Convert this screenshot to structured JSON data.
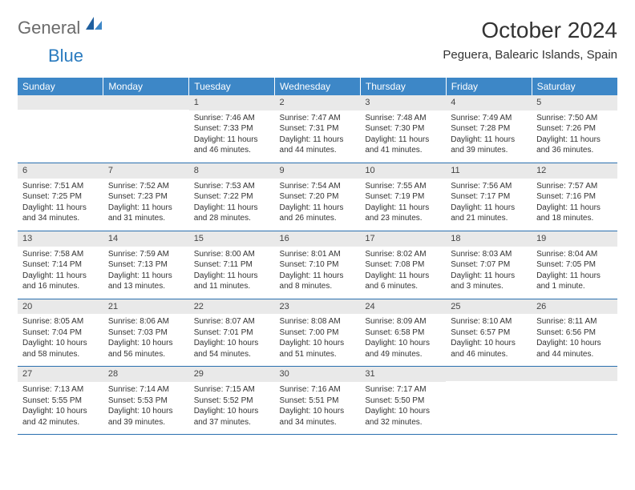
{
  "header": {
    "logo_general": "General",
    "logo_blue": "Blue",
    "month_title": "October 2024",
    "location": "Peguera, Balearic Islands, Spain"
  },
  "calendar": {
    "header_bg": "#3d87c7",
    "header_fg": "#ffffff",
    "border_color": "#2a6faf",
    "daynum_bg": "#e9e9e9",
    "columns": [
      "Sunday",
      "Monday",
      "Tuesday",
      "Wednesday",
      "Thursday",
      "Friday",
      "Saturday"
    ],
    "rows": [
      [
        {
          "day": "",
          "sunrise": "",
          "sunset": "",
          "daylight": ""
        },
        {
          "day": "",
          "sunrise": "",
          "sunset": "",
          "daylight": ""
        },
        {
          "day": "1",
          "sunrise": "Sunrise: 7:46 AM",
          "sunset": "Sunset: 7:33 PM",
          "daylight": "Daylight: 11 hours and 46 minutes."
        },
        {
          "day": "2",
          "sunrise": "Sunrise: 7:47 AM",
          "sunset": "Sunset: 7:31 PM",
          "daylight": "Daylight: 11 hours and 44 minutes."
        },
        {
          "day": "3",
          "sunrise": "Sunrise: 7:48 AM",
          "sunset": "Sunset: 7:30 PM",
          "daylight": "Daylight: 11 hours and 41 minutes."
        },
        {
          "day": "4",
          "sunrise": "Sunrise: 7:49 AM",
          "sunset": "Sunset: 7:28 PM",
          "daylight": "Daylight: 11 hours and 39 minutes."
        },
        {
          "day": "5",
          "sunrise": "Sunrise: 7:50 AM",
          "sunset": "Sunset: 7:26 PM",
          "daylight": "Daylight: 11 hours and 36 minutes."
        }
      ],
      [
        {
          "day": "6",
          "sunrise": "Sunrise: 7:51 AM",
          "sunset": "Sunset: 7:25 PM",
          "daylight": "Daylight: 11 hours and 34 minutes."
        },
        {
          "day": "7",
          "sunrise": "Sunrise: 7:52 AM",
          "sunset": "Sunset: 7:23 PM",
          "daylight": "Daylight: 11 hours and 31 minutes."
        },
        {
          "day": "8",
          "sunrise": "Sunrise: 7:53 AM",
          "sunset": "Sunset: 7:22 PM",
          "daylight": "Daylight: 11 hours and 28 minutes."
        },
        {
          "day": "9",
          "sunrise": "Sunrise: 7:54 AM",
          "sunset": "Sunset: 7:20 PM",
          "daylight": "Daylight: 11 hours and 26 minutes."
        },
        {
          "day": "10",
          "sunrise": "Sunrise: 7:55 AM",
          "sunset": "Sunset: 7:19 PM",
          "daylight": "Daylight: 11 hours and 23 minutes."
        },
        {
          "day": "11",
          "sunrise": "Sunrise: 7:56 AM",
          "sunset": "Sunset: 7:17 PM",
          "daylight": "Daylight: 11 hours and 21 minutes."
        },
        {
          "day": "12",
          "sunrise": "Sunrise: 7:57 AM",
          "sunset": "Sunset: 7:16 PM",
          "daylight": "Daylight: 11 hours and 18 minutes."
        }
      ],
      [
        {
          "day": "13",
          "sunrise": "Sunrise: 7:58 AM",
          "sunset": "Sunset: 7:14 PM",
          "daylight": "Daylight: 11 hours and 16 minutes."
        },
        {
          "day": "14",
          "sunrise": "Sunrise: 7:59 AM",
          "sunset": "Sunset: 7:13 PM",
          "daylight": "Daylight: 11 hours and 13 minutes."
        },
        {
          "day": "15",
          "sunrise": "Sunrise: 8:00 AM",
          "sunset": "Sunset: 7:11 PM",
          "daylight": "Daylight: 11 hours and 11 minutes."
        },
        {
          "day": "16",
          "sunrise": "Sunrise: 8:01 AM",
          "sunset": "Sunset: 7:10 PM",
          "daylight": "Daylight: 11 hours and 8 minutes."
        },
        {
          "day": "17",
          "sunrise": "Sunrise: 8:02 AM",
          "sunset": "Sunset: 7:08 PM",
          "daylight": "Daylight: 11 hours and 6 minutes."
        },
        {
          "day": "18",
          "sunrise": "Sunrise: 8:03 AM",
          "sunset": "Sunset: 7:07 PM",
          "daylight": "Daylight: 11 hours and 3 minutes."
        },
        {
          "day": "19",
          "sunrise": "Sunrise: 8:04 AM",
          "sunset": "Sunset: 7:05 PM",
          "daylight": "Daylight: 11 hours and 1 minute."
        }
      ],
      [
        {
          "day": "20",
          "sunrise": "Sunrise: 8:05 AM",
          "sunset": "Sunset: 7:04 PM",
          "daylight": "Daylight: 10 hours and 58 minutes."
        },
        {
          "day": "21",
          "sunrise": "Sunrise: 8:06 AM",
          "sunset": "Sunset: 7:03 PM",
          "daylight": "Daylight: 10 hours and 56 minutes."
        },
        {
          "day": "22",
          "sunrise": "Sunrise: 8:07 AM",
          "sunset": "Sunset: 7:01 PM",
          "daylight": "Daylight: 10 hours and 54 minutes."
        },
        {
          "day": "23",
          "sunrise": "Sunrise: 8:08 AM",
          "sunset": "Sunset: 7:00 PM",
          "daylight": "Daylight: 10 hours and 51 minutes."
        },
        {
          "day": "24",
          "sunrise": "Sunrise: 8:09 AM",
          "sunset": "Sunset: 6:58 PM",
          "daylight": "Daylight: 10 hours and 49 minutes."
        },
        {
          "day": "25",
          "sunrise": "Sunrise: 8:10 AM",
          "sunset": "Sunset: 6:57 PM",
          "daylight": "Daylight: 10 hours and 46 minutes."
        },
        {
          "day": "26",
          "sunrise": "Sunrise: 8:11 AM",
          "sunset": "Sunset: 6:56 PM",
          "daylight": "Daylight: 10 hours and 44 minutes."
        }
      ],
      [
        {
          "day": "27",
          "sunrise": "Sunrise: 7:13 AM",
          "sunset": "Sunset: 5:55 PM",
          "daylight": "Daylight: 10 hours and 42 minutes."
        },
        {
          "day": "28",
          "sunrise": "Sunrise: 7:14 AM",
          "sunset": "Sunset: 5:53 PM",
          "daylight": "Daylight: 10 hours and 39 minutes."
        },
        {
          "day": "29",
          "sunrise": "Sunrise: 7:15 AM",
          "sunset": "Sunset: 5:52 PM",
          "daylight": "Daylight: 10 hours and 37 minutes."
        },
        {
          "day": "30",
          "sunrise": "Sunrise: 7:16 AM",
          "sunset": "Sunset: 5:51 PM",
          "daylight": "Daylight: 10 hours and 34 minutes."
        },
        {
          "day": "31",
          "sunrise": "Sunrise: 7:17 AM",
          "sunset": "Sunset: 5:50 PM",
          "daylight": "Daylight: 10 hours and 32 minutes."
        },
        {
          "day": "",
          "sunrise": "",
          "sunset": "",
          "daylight": ""
        },
        {
          "day": "",
          "sunrise": "",
          "sunset": "",
          "daylight": ""
        }
      ]
    ]
  }
}
